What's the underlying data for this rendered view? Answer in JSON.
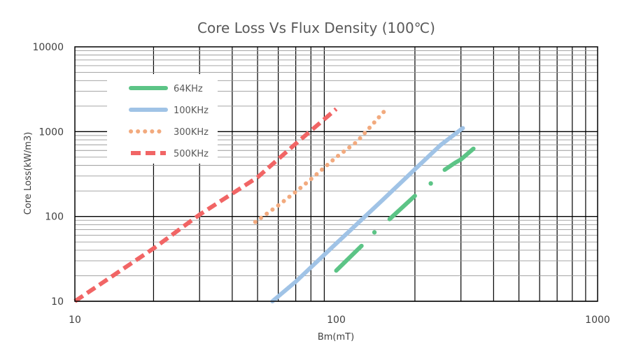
{
  "chart_data": {
    "type": "line",
    "title": "Core Loss Vs Flux Density (100℃)",
    "xlabel": "Bm(mT)",
    "ylabel": "Core Loss(kW/m3)",
    "x_scale": "log",
    "y_scale": "log",
    "xlim": [
      10,
      1000
    ],
    "ylim": [
      10,
      10000
    ],
    "x_ticks": [
      "10",
      "100",
      "1000"
    ],
    "y_ticks": [
      "10",
      "100",
      "1000",
      "10000"
    ],
    "grid": true,
    "legend_position": "top-left",
    "series": [
      {
        "name": "64KHz",
        "color": "#5cc486",
        "style": "solid",
        "segments": [
          [
            [
              100,
              23
            ],
            [
              125,
              45
            ]
          ],
          [
            [
              140,
              65
            ]
          ],
          [
            [
              160,
              93
            ],
            [
              200,
              175
            ]
          ],
          [
            [
              230,
              245
            ]
          ],
          [
            [
              260,
              355
            ],
            [
              285,
              430
            ],
            [
              300,
              470
            ],
            [
              335,
              630
            ]
          ]
        ]
      },
      {
        "name": "100KHz",
        "color": "#a0c3e6",
        "style": "solid",
        "segments": [
          [
            [
              57,
              10
            ],
            [
              70,
              17
            ],
            [
              100,
              48
            ],
            [
              150,
              155
            ],
            [
              200,
              360
            ],
            [
              250,
              690
            ],
            [
              305,
              1100
            ]
          ]
        ]
      },
      {
        "name": "300KHz",
        "color": "#f2aa7e",
        "style": "dotted",
        "segments": [
          [
            [
              49,
              86
            ],
            [
              60,
              135
            ],
            [
              70,
              195
            ],
            [
              80,
              275
            ],
            [
              100,
              500
            ],
            [
              120,
              760
            ],
            [
              153,
              1750
            ]
          ]
        ]
      },
      {
        "name": "500KHz",
        "color": "#f16565",
        "style": "dashed",
        "segments": [
          [
            [
              10,
              10
            ],
            [
              20,
              42
            ],
            [
              30,
              105
            ],
            [
              50,
              290
            ],
            [
              70,
              720
            ],
            [
              100,
              1850
            ]
          ]
        ]
      }
    ]
  }
}
